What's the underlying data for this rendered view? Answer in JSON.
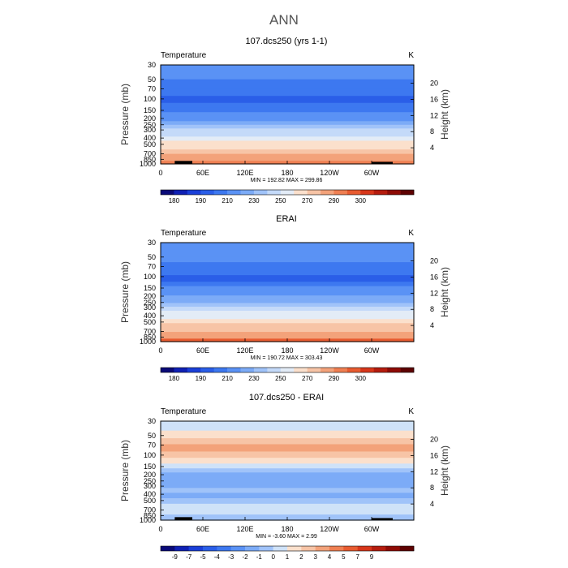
{
  "page": {
    "title": "ANN"
  },
  "colors": {
    "abs_palette": [
      "#0a0a78",
      "#0f20b4",
      "#1a3fd8",
      "#2a5ee8",
      "#3d78f0",
      "#5a92f5",
      "#7cabf7",
      "#a0c3f9",
      "#c4daf9",
      "#e3ecf7",
      "#fbe0cc",
      "#f7c4a6",
      "#f3a27a",
      "#ef7f52",
      "#e85b30",
      "#d7361a",
      "#b51c0e",
      "#8e0b05",
      "#5e0202"
    ],
    "diff_palette": [
      "#0a0a78",
      "#0f20b4",
      "#1a3fd8",
      "#2a5ee8",
      "#3d78f0",
      "#5a92f5",
      "#7cabf7",
      "#a0c3f9",
      "#cfe2f8",
      "#fbe0cc",
      "#f7c4a6",
      "#f3a27a",
      "#ef7f52",
      "#e85b30",
      "#d7361a",
      "#b51c0e",
      "#8e0b05",
      "#5e0202"
    ],
    "topography": "#000000"
  },
  "chart_data": [
    {
      "type": "heatmap",
      "title": "107.dcs250 (yrs 1-1)",
      "left_label": "Temperature",
      "right_label": "K",
      "ylabel": "Pressure (mb)",
      "ylabel_right": "Height (km)",
      "x_ticks": [
        "0",
        "60E",
        "120E",
        "180",
        "120W",
        "60W"
      ],
      "x_tick_values": [
        0,
        60,
        120,
        180,
        240,
        300
      ],
      "xlim": [
        0,
        360
      ],
      "y_ticks": [
        "30",
        "50",
        "70",
        "100",
        "150",
        "200",
        "250",
        "300",
        "400",
        "500",
        "700",
        "850",
        "1000"
      ],
      "y_tick_values": [
        30,
        50,
        70,
        100,
        150,
        200,
        250,
        300,
        400,
        500,
        700,
        850,
        1000
      ],
      "ylim": [
        30,
        1000
      ],
      "y_scale": "log",
      "height_ticks": [
        "20",
        "16",
        "12",
        "8",
        "4"
      ],
      "height_tick_values": [
        20,
        16,
        12,
        8,
        4
      ],
      "stats": "MIN = 192.82   MAX = 299.86",
      "min": 192.82,
      "max": 299.86,
      "levels": [
        {
          "p": [
            30,
            40
          ],
          "v": 215
        },
        {
          "p": [
            40,
            50
          ],
          "v": 212
        },
        {
          "p": [
            50,
            60
          ],
          "v": 209
        },
        {
          "p": [
            60,
            70
          ],
          "v": 206
        },
        {
          "p": [
            70,
            90
          ],
          "v": 202
        },
        {
          "p": [
            90,
            115
          ],
          "v": 198
        },
        {
          "p": [
            115,
            135
          ],
          "v": 201
        },
        {
          "p": [
            135,
            160
          ],
          "v": 207
        },
        {
          "p": [
            160,
            190
          ],
          "v": 213
        },
        {
          "p": [
            190,
            220
          ],
          "v": 218
        },
        {
          "p": [
            220,
            250
          ],
          "v": 224
        },
        {
          "p": [
            250,
            285
          ],
          "v": 232
        },
        {
          "p": [
            285,
            330
          ],
          "v": 240
        },
        {
          "p": [
            330,
            380
          ],
          "v": 247
        },
        {
          "p": [
            380,
            440
          ],
          "v": 255
        },
        {
          "p": [
            440,
            510
          ],
          "v": 262
        },
        {
          "p": [
            510,
            600
          ],
          "v": 268
        },
        {
          "p": [
            600,
            700
          ],
          "v": 274
        },
        {
          "p": [
            700,
            800
          ],
          "v": 280
        },
        {
          "p": [
            800,
            900
          ],
          "v": 286
        },
        {
          "p": [
            900,
            1000
          ],
          "v": 291
        }
      ],
      "topography": [
        [
          20,
          45,
          900
        ],
        [
          300,
          330,
          930
        ]
      ],
      "colorbar": {
        "labels": [
          "180",
          "190",
          "210",
          "230",
          "250",
          "270",
          "290",
          "300"
        ],
        "label_positions": [
          1,
          3,
          5,
          7,
          9,
          11,
          13,
          15
        ]
      }
    },
    {
      "type": "heatmap",
      "title": "ERAI",
      "left_label": "Temperature",
      "right_label": "K",
      "ylabel": "Pressure (mb)",
      "ylabel_right": "Height (km)",
      "x_ticks": [
        "0",
        "60E",
        "120E",
        "180",
        "120W",
        "60W"
      ],
      "x_tick_values": [
        0,
        60,
        120,
        180,
        240,
        300
      ],
      "xlim": [
        0,
        360
      ],
      "y_ticks": [
        "30",
        "50",
        "70",
        "100",
        "150",
        "200",
        "250",
        "300",
        "400",
        "500",
        "700",
        "850",
        "1000"
      ],
      "y_tick_values": [
        30,
        50,
        70,
        100,
        150,
        200,
        250,
        300,
        400,
        500,
        700,
        850,
        1000
      ],
      "ylim": [
        30,
        1000
      ],
      "y_scale": "log",
      "height_ticks": [
        "20",
        "16",
        "12",
        "8",
        "4"
      ],
      "height_tick_values": [
        20,
        16,
        12,
        8,
        4
      ],
      "stats": "MIN = 190.72   MAX = 303.43",
      "min": 190.72,
      "max": 303.43,
      "levels": [
        {
          "p": [
            30,
            40
          ],
          "v": 218
        },
        {
          "p": [
            40,
            50
          ],
          "v": 214
        },
        {
          "p": [
            50,
            60
          ],
          "v": 210
        },
        {
          "p": [
            60,
            75
          ],
          "v": 206
        },
        {
          "p": [
            75,
            95
          ],
          "v": 202
        },
        {
          "p": [
            95,
            120
          ],
          "v": 198
        },
        {
          "p": [
            120,
            140
          ],
          "v": 204
        },
        {
          "p": [
            140,
            165
          ],
          "v": 210
        },
        {
          "p": [
            165,
            195
          ],
          "v": 215
        },
        {
          "p": [
            195,
            225
          ],
          "v": 221
        },
        {
          "p": [
            225,
            255
          ],
          "v": 227
        },
        {
          "p": [
            255,
            290
          ],
          "v": 235
        },
        {
          "p": [
            290,
            335
          ],
          "v": 243
        },
        {
          "p": [
            335,
            390
          ],
          "v": 251
        },
        {
          "p": [
            390,
            450
          ],
          "v": 258
        },
        {
          "p": [
            450,
            520
          ],
          "v": 265
        },
        {
          "p": [
            520,
            610
          ],
          "v": 271
        },
        {
          "p": [
            610,
            710
          ],
          "v": 277
        },
        {
          "p": [
            710,
            810
          ],
          "v": 283
        },
        {
          "p": [
            810,
            900
          ],
          "v": 289
        },
        {
          "p": [
            900,
            1000
          ],
          "v": 295
        }
      ],
      "topography": [],
      "colorbar": {
        "labels": [
          "180",
          "190",
          "210",
          "230",
          "250",
          "270",
          "290",
          "300"
        ],
        "label_positions": [
          1,
          3,
          5,
          7,
          9,
          11,
          13,
          15
        ]
      }
    },
    {
      "type": "heatmap",
      "title": "107.dcs250 - ERAI",
      "left_label": "Temperature",
      "right_label": "K",
      "ylabel": "Pressure (mb)",
      "ylabel_right": "Height (km)",
      "x_ticks": [
        "0",
        "60E",
        "120E",
        "180",
        "120W",
        "60W"
      ],
      "x_tick_values": [
        0,
        60,
        120,
        180,
        240,
        300
      ],
      "xlim": [
        0,
        360
      ],
      "y_ticks": [
        "30",
        "50",
        "70",
        "100",
        "150",
        "200",
        "250",
        "300",
        "400",
        "500",
        "700",
        "850",
        "1000"
      ],
      "y_tick_values": [
        30,
        50,
        70,
        100,
        150,
        200,
        250,
        300,
        400,
        500,
        700,
        850,
        1000
      ],
      "ylim": [
        30,
        1000
      ],
      "y_scale": "log",
      "height_ticks": [
        "20",
        "16",
        "12",
        "8",
        "4"
      ],
      "height_tick_values": [
        20,
        16,
        12,
        8,
        4
      ],
      "stats": "MIN =   -3.60   MAX =    2.99",
      "min": -3.6,
      "max": 2.99,
      "levels": [
        {
          "p": [
            30,
            42
          ],
          "v": -0.5
        },
        {
          "p": [
            42,
            55
          ],
          "v": 0.5
        },
        {
          "p": [
            55,
            68
          ],
          "v": 1.5
        },
        {
          "p": [
            68,
            88
          ],
          "v": 2.5
        },
        {
          "p": [
            88,
            110
          ],
          "v": 1.5
        },
        {
          "p": [
            110,
            135
          ],
          "v": 0.5
        },
        {
          "p": [
            135,
            160
          ],
          "v": -0.5
        },
        {
          "p": [
            160,
            185
          ],
          "v": -1.5
        },
        {
          "p": [
            185,
            215
          ],
          "v": -2.5
        },
        {
          "p": [
            215,
            260
          ],
          "v": -3.0
        },
        {
          "p": [
            260,
            320
          ],
          "v": -2.5
        },
        {
          "p": [
            320,
            380
          ],
          "v": -1.5
        },
        {
          "p": [
            380,
            460
          ],
          "v": -2.5
        },
        {
          "p": [
            460,
            560
          ],
          "v": -1.5
        },
        {
          "p": [
            560,
            700
          ],
          "v": -0.5
        },
        {
          "p": [
            700,
            820
          ],
          "v": -0.5
        },
        {
          "p": [
            820,
            1000
          ],
          "v": -1.5
        }
      ],
      "topography": [
        [
          20,
          45,
          900
        ],
        [
          300,
          330,
          930
        ]
      ],
      "colorbar": {
        "labels": [
          "-9",
          "-7",
          "-5",
          "-4",
          "-3",
          "-2",
          "-1",
          "0",
          "1",
          "2",
          "3",
          "4",
          "5",
          "7",
          "9"
        ],
        "label_positions": [
          1,
          2,
          3,
          4,
          5,
          6,
          7,
          8,
          9,
          10,
          11,
          12,
          13,
          14,
          15
        ]
      }
    }
  ]
}
